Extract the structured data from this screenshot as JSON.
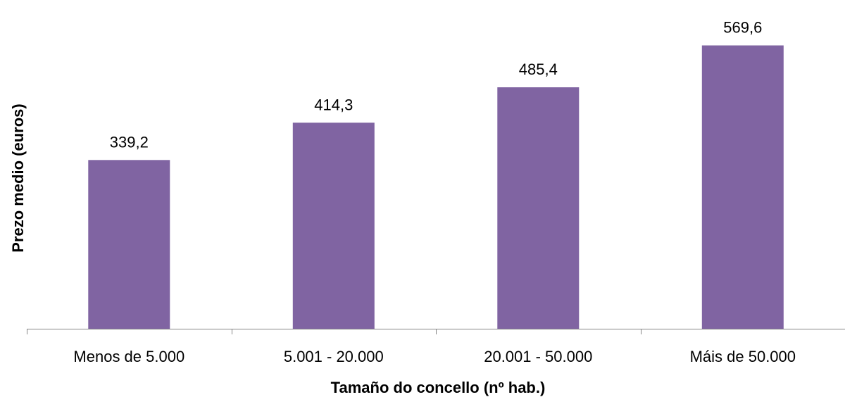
{
  "chart_data": {
    "type": "bar",
    "title": "",
    "xlabel": "Tamaño do concello (nº hab.)",
    "ylabel": "Prezo medio (euros)",
    "categories": [
      "Menos de 5.000",
      "5.001 - 20.000",
      "20.001 - 50.000",
      "Máis de 50.000"
    ],
    "values": [
      339.2,
      414.3,
      485.4,
      569.6
    ],
    "data_labels": [
      "339,2",
      "414,3",
      "485,4",
      "569,6"
    ],
    "ylim": [
      0,
      600
    ],
    "grid": false,
    "legend": "none",
    "bar_color": "#8064A2",
    "axis_color": "#868686"
  }
}
